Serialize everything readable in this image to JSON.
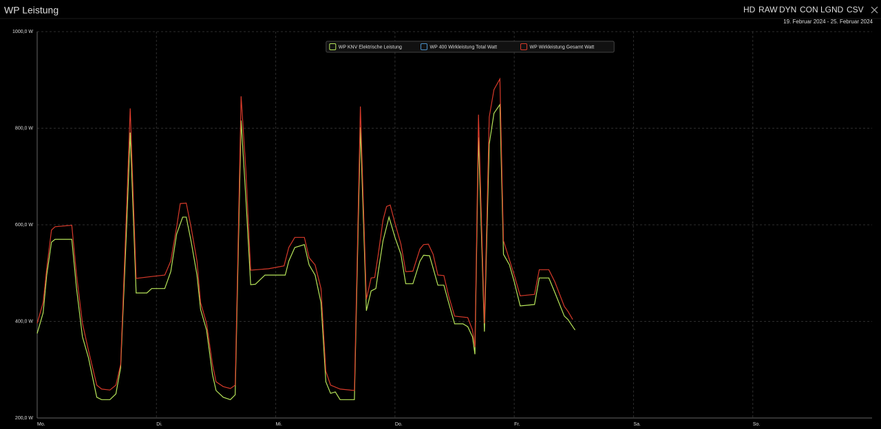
{
  "header": {
    "title": "WP Leistung",
    "date_range": "19. Februar 2024 - 25. Februar 2024",
    "toolbar": [
      {
        "label": "HD",
        "active": true
      },
      {
        "label": "RAW",
        "active": false
      },
      {
        "label": "DYN",
        "active": true
      },
      {
        "label": "CON",
        "active": false
      },
      {
        "label": "LGND",
        "active": true
      },
      {
        "label": "CSV",
        "active": false
      }
    ]
  },
  "chart_data": {
    "type": "line",
    "xlim": [
      0,
      7
    ],
    "xticks": [
      {
        "value": 0,
        "label": "Mo."
      },
      {
        "value": 1,
        "label": "Di."
      },
      {
        "value": 2,
        "label": "Mi."
      },
      {
        "value": 3,
        "label": "Do."
      },
      {
        "value": 4,
        "label": "Fr."
      },
      {
        "value": 5,
        "label": "Sa."
      },
      {
        "value": 6,
        "label": "So."
      }
    ],
    "ylim": [
      200,
      1000
    ],
    "yticks": [
      {
        "value": 200,
        "label": "200,0 W"
      },
      {
        "value": 400,
        "label": "400,0 W"
      },
      {
        "value": 600,
        "label": "600,0 W"
      },
      {
        "value": 800,
        "label": "800,0 W"
      },
      {
        "value": 1000,
        "label": "1000,0 W"
      }
    ],
    "grid": true,
    "legend": "top",
    "series": [
      {
        "name": "WP KNV Elektrische Leistung",
        "color": "#b8e65a",
        "x": [
          0.0,
          0.05,
          0.08,
          0.12,
          0.15,
          0.29,
          0.33,
          0.38,
          0.43,
          0.5,
          0.54,
          0.61,
          0.66,
          0.7,
          0.75,
          0.78,
          0.83,
          0.92,
          0.96,
          1.07,
          1.12,
          1.17,
          1.22,
          1.25,
          1.29,
          1.34,
          1.37,
          1.42,
          1.47,
          1.5,
          1.56,
          1.62,
          1.66,
          1.71,
          1.75,
          1.79,
          1.83,
          1.91,
          2.08,
          2.11,
          2.16,
          2.24,
          2.28,
          2.33,
          2.38,
          2.42,
          2.46,
          2.5,
          2.54,
          2.66,
          2.71,
          2.76,
          2.8,
          2.84,
          2.86,
          2.9,
          2.95,
          3.0,
          3.05,
          3.09,
          3.15,
          3.21,
          3.24,
          3.29,
          3.32,
          3.36,
          3.41,
          3.45,
          3.5,
          3.57,
          3.61,
          3.65,
          3.67,
          3.7,
          3.75,
          3.79,
          3.83,
          3.88,
          3.91,
          3.96,
          4.0,
          4.05,
          4.17,
          4.21,
          4.29,
          4.34,
          4.42,
          4.45,
          4.51
        ],
        "values": [
          375,
          418,
          496,
          564,
          570,
          570,
          468,
          368,
          325,
          243,
          238,
          238,
          250,
          304,
          596,
          791,
          459,
          459,
          468,
          468,
          503,
          581,
          616,
          616,
          567,
          496,
          425,
          382,
          290,
          257,
          243,
          238,
          248,
          816,
          653,
          476,
          477,
          496,
          496,
          525,
          553,
          559,
          517,
          496,
          439,
          275,
          251,
          254,
          238,
          238,
          802,
          422,
          463,
          468,
          503,
          567,
          616,
          574,
          539,
          478,
          478,
          525,
          537,
          536,
          510,
          475,
          475,
          439,
          395,
          395,
          389,
          368,
          332,
          781,
          379,
          767,
          831,
          849,
          539,
          517,
          482,
          432,
          435,
          490,
          490,
          460,
          411,
          404,
          382
        ]
      },
      {
        "name": "WP 400 Wirkleistung Total Watt",
        "color": "#4a90c8"
      },
      {
        "name": "WP Wirkleistung Gesamt Watt",
        "color": "#d83a2a",
        "x": [
          0.0,
          0.05,
          0.08,
          0.12,
          0.15,
          0.29,
          0.33,
          0.38,
          0.43,
          0.5,
          0.54,
          0.61,
          0.66,
          0.7,
          0.75,
          0.78,
          0.83,
          0.96,
          1.07,
          1.12,
          1.17,
          1.2,
          1.25,
          1.29,
          1.34,
          1.37,
          1.42,
          1.47,
          1.5,
          1.56,
          1.62,
          1.66,
          1.71,
          1.75,
          1.79,
          1.94,
          2.07,
          2.11,
          2.16,
          2.24,
          2.28,
          2.33,
          2.38,
          2.42,
          2.46,
          2.54,
          2.66,
          2.71,
          2.76,
          2.8,
          2.83,
          2.86,
          2.9,
          2.93,
          2.96,
          3.0,
          3.05,
          3.09,
          3.15,
          3.21,
          3.24,
          3.28,
          3.32,
          3.36,
          3.41,
          3.45,
          3.5,
          3.61,
          3.65,
          3.67,
          3.7,
          3.75,
          3.79,
          3.83,
          3.88,
          3.91,
          4.0,
          4.05,
          4.17,
          4.21,
          4.29,
          4.34,
          4.42,
          4.45,
          4.49
        ],
        "values": [
          396,
          439,
          510,
          589,
          596,
          599,
          496,
          396,
          340,
          268,
          260,
          258,
          268,
          311,
          638,
          841,
          489,
          493,
          496,
          525,
          596,
          644,
          645,
          596,
          525,
          439,
          396,
          311,
          275,
          265,
          261,
          268,
          866,
          710,
          506,
          509,
          515,
          553,
          574,
          574,
          532,
          517,
          468,
          297,
          268,
          260,
          257,
          845,
          446,
          490,
          491,
          539,
          610,
          638,
          641,
          603,
          560,
          503,
          504,
          550,
          559,
          560,
          539,
          496,
          495,
          453,
          411,
          408,
          382,
          347,
          828,
          396,
          823,
          880,
          902,
          567,
          496,
          453,
          456,
          507,
          507,
          482,
          431,
          421,
          404
        ]
      }
    ]
  }
}
